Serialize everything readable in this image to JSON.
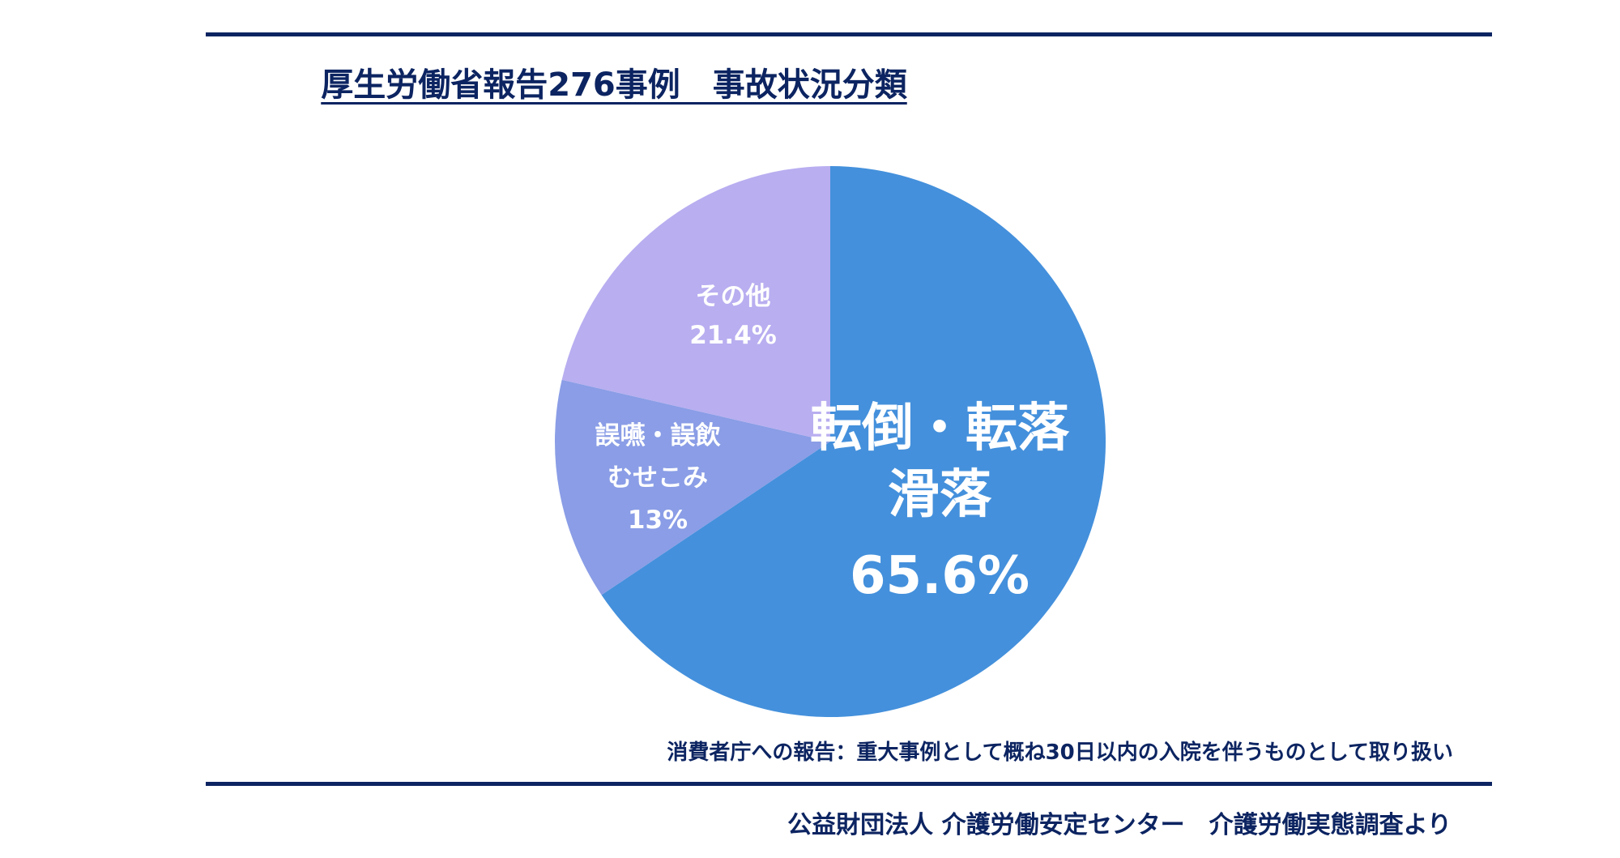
{
  "title": "厚生労働省報告276事例　事故状況分類",
  "note": "消費者庁への報告：重大事例として概ね30日以内の入院を伴うものとして取り扱い",
  "source": "公益財団法人 介護労働安定センター　介護労働実態調査より",
  "colors": {
    "rule": "#0c2461",
    "text": "#0c2461",
    "slice_fall": "#4490dc",
    "slice_swallow": "#8a9de6",
    "slice_other": "#b8aef0",
    "label": "#ffffff"
  },
  "chart_data": {
    "type": "pie",
    "title": "厚生労働省報告276事例　事故状況分類",
    "slices": [
      {
        "label_lines": [
          "転倒・転落",
          "滑落"
        ],
        "value": 65.6,
        "value_label": "65.6%",
        "color": "#4490dc"
      },
      {
        "label_lines": [
          "誤嚥・誤飲",
          "むせこみ"
        ],
        "value": 13,
        "value_label": "13%",
        "color": "#8a9de6"
      },
      {
        "label_lines": [
          "その他"
        ],
        "value": 21.4,
        "value_label": "21.4%",
        "color": "#b8aef0"
      }
    ],
    "start": "12 o'clock",
    "direction": "clockwise"
  }
}
